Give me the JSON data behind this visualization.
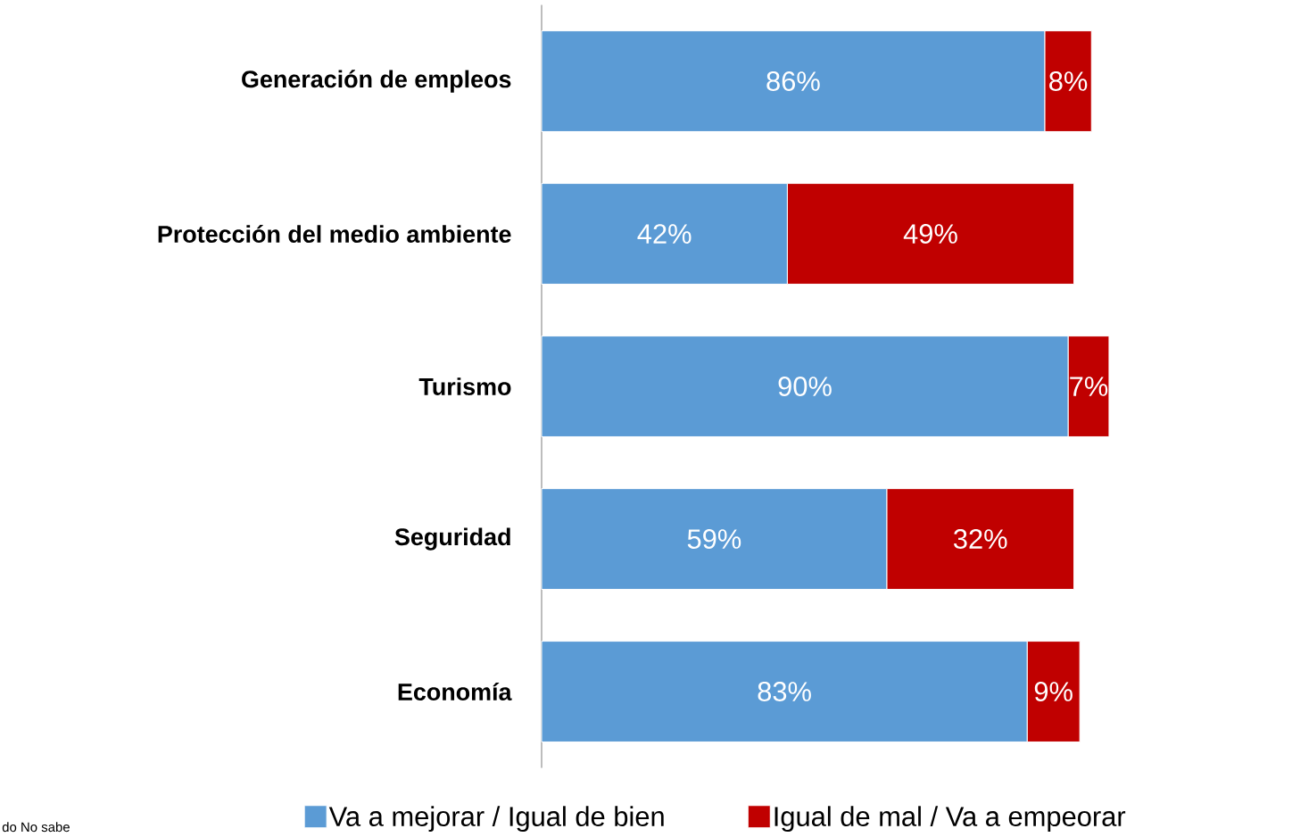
{
  "chart_data": {
    "type": "bar",
    "orientation": "horizontal",
    "stacked": true,
    "categories": [
      "Generación de empleos",
      "Protección del medio ambiente",
      "Turismo",
      "Seguridad",
      "Economía"
    ],
    "series": [
      {
        "name": "Va a mejorar / Igual de bien",
        "color": "#5b9bd5",
        "values": [
          86,
          42,
          90,
          59,
          83
        ],
        "value_labels": [
          "86%",
          "42%",
          "90%",
          "59%",
          "83%"
        ]
      },
      {
        "name": "Igual de mal / Va a empeorar",
        "color": "#c00000",
        "values": [
          8,
          49,
          7,
          32,
          9
        ],
        "value_labels": [
          "8%",
          "49%",
          "7%",
          "32%",
          "9%"
        ]
      }
    ],
    "tick_labels": "y",
    "grid": false,
    "legend": "bottom",
    "annotations": [
      "do No sabe"
    ]
  }
}
